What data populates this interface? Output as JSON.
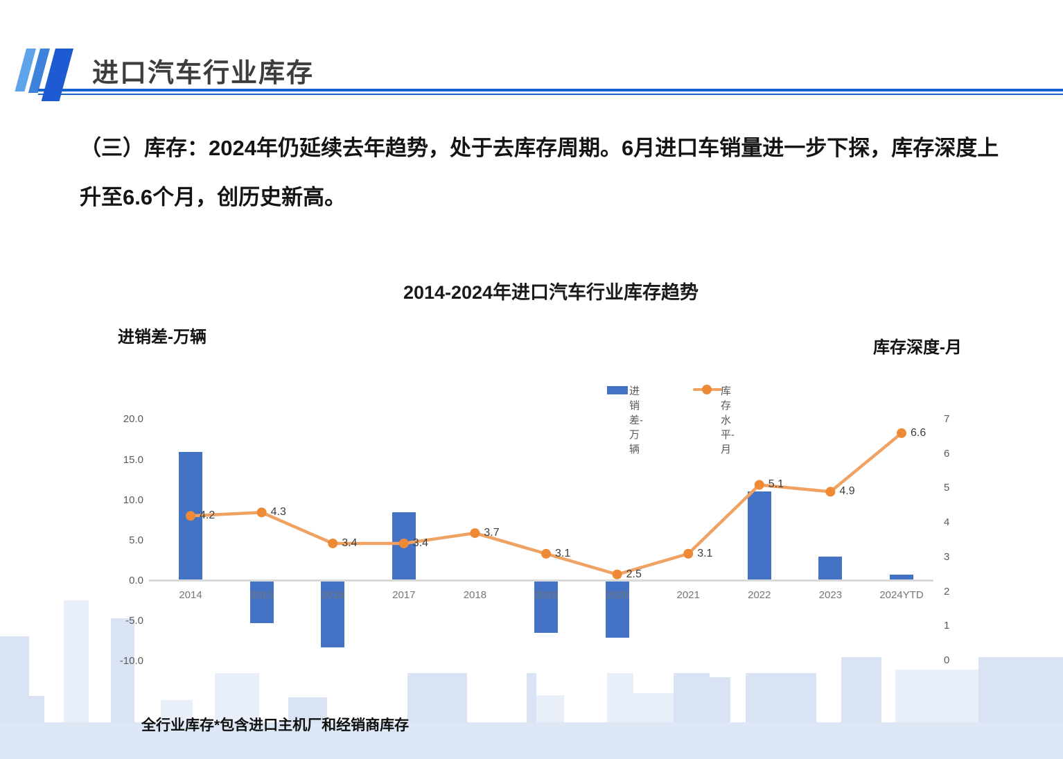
{
  "header": {
    "title": "进口汽车行业库存"
  },
  "intro_text": "（三）库存：2024年仍延续去年趋势，处于去库存周期。6月进口车销量进一步下探，库存深度上升至6.6个月，创历史新高。",
  "footnote": "全行业库存*包含进口主机厂和经销商库存",
  "colors": {
    "bar_blue": "#4472C4",
    "line_orange": "#ED7D31",
    "header_accent": "#1565D0",
    "axis_line_gray": "#D9D9D9"
  },
  "chart_data": {
    "type": "bar",
    "combo": "bar + line, dual axis",
    "title": "2014-2024年进口汽车行业库存趋势",
    "categories": [
      "2014",
      "2015",
      "2016",
      "2017",
      "2018",
      "2019",
      "2020",
      "2021",
      "2022",
      "2023",
      "2024YTD"
    ],
    "series": [
      {
        "name": "进销差-万辆",
        "type": "bar",
        "axis": "left",
        "color": "#4472C4",
        "values": [
          16.0,
          -5.2,
          -8.2,
          8.5,
          0.0,
          -6.4,
          -7.0,
          0.0,
          11.1,
          3.0,
          0.8
        ]
      },
      {
        "name": "库存水平-月",
        "type": "line",
        "axis": "right",
        "color": "#ED7D31",
        "values": [
          4.2,
          4.3,
          3.4,
          3.4,
          3.7,
          3.1,
          2.5,
          3.1,
          5.1,
          4.9,
          6.6
        ],
        "point_labels": [
          "4.2",
          "4.3",
          "3.4",
          "3.4",
          "3.7",
          "3.1",
          "2.5",
          "3.1",
          "5.1",
          "4.9",
          "6.6"
        ]
      }
    ],
    "left_axis": {
      "title": "进销差-万辆",
      "range": [
        -10,
        20
      ],
      "ticks": [
        {
          "label": "20.0",
          "value": 20
        },
        {
          "label": "15.0",
          "value": 15
        },
        {
          "label": "10.0",
          "value": 10
        },
        {
          "label": "5.0",
          "value": 5
        },
        {
          "label": "0.0",
          "value": 0
        },
        {
          "label": "-5.0",
          "value": -5
        },
        {
          "label": "-10.0",
          "value": -10
        }
      ]
    },
    "right_axis": {
      "title": "库存深度-月",
      "range": [
        0,
        7
      ],
      "ticks": [
        {
          "label": "7",
          "value": 7
        },
        {
          "label": "6",
          "value": 6
        },
        {
          "label": "5",
          "value": 5
        },
        {
          "label": "4",
          "value": 4
        },
        {
          "label": "3",
          "value": 3
        },
        {
          "label": "2",
          "value": 2
        },
        {
          "label": "1",
          "value": 1
        },
        {
          "label": "0",
          "value": 0
        }
      ]
    },
    "legend": [
      "进销差-万辆",
      "库存水平-月"
    ],
    "gridlines": false,
    "legend_position": "top-center-right"
  }
}
